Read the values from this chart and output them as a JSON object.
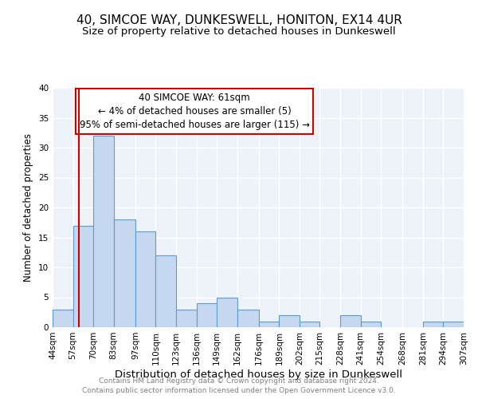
{
  "title": "40, SIMCOE WAY, DUNKESWELL, HONITON, EX14 4UR",
  "subtitle": "Size of property relative to detached houses in Dunkeswell",
  "xlabel": "Distribution of detached houses by size in Dunkeswell",
  "ylabel": "Number of detached properties",
  "bin_edges": [
    44,
    57,
    70,
    83,
    97,
    110,
    123,
    136,
    149,
    162,
    176,
    189,
    202,
    215,
    228,
    241,
    254,
    268,
    281,
    294,
    307
  ],
  "bin_labels": [
    "44sqm",
    "57sqm",
    "70sqm",
    "83sqm",
    "97sqm",
    "110sqm",
    "123sqm",
    "136sqm",
    "149sqm",
    "162sqm",
    "176sqm",
    "189sqm",
    "202sqm",
    "215sqm",
    "228sqm",
    "241sqm",
    "254sqm",
    "268sqm",
    "281sqm",
    "294sqm",
    "307sqm"
  ],
  "counts": [
    3,
    17,
    32,
    18,
    16,
    12,
    3,
    4,
    5,
    3,
    1,
    2,
    1,
    0,
    2,
    1,
    0,
    0,
    1,
    1
  ],
  "bar_color": "#c5d8f0",
  "bar_edge_color": "#5b9bd5",
  "vline_x": 61,
  "vline_color": "#cc0000",
  "annotation_lines": [
    "40 SIMCOE WAY: 61sqm",
    "← 4% of detached houses are smaller (5)",
    "95% of semi-detached houses are larger (115) →"
  ],
  "annotation_box_color": "#cc0000",
  "ylim": [
    0,
    40
  ],
  "yticks": [
    0,
    5,
    10,
    15,
    20,
    25,
    30,
    35,
    40
  ],
  "background_color": "#eef2f9",
  "grid_color": "#ffffff",
  "footer_lines": [
    "Contains HM Land Registry data © Crown copyright and database right 2024.",
    "Contains public sector information licensed under the Open Government Licence v3.0."
  ],
  "title_fontsize": 11,
  "subtitle_fontsize": 9.5,
  "xlabel_fontsize": 9.5,
  "ylabel_fontsize": 8.5,
  "tick_fontsize": 7.5,
  "annotation_fontsize": 8.5,
  "footer_fontsize": 6.5
}
